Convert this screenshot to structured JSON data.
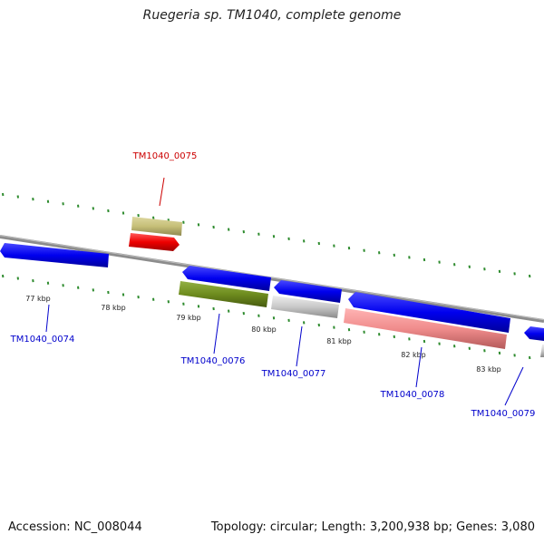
{
  "title": "Ruegeria sp. TM1040, complete genome",
  "footer": {
    "accession": "Accession: NC_008044",
    "summary": "Topology: circular; Length: 3,200,938 bp; Genes: 3,080"
  },
  "scale": {
    "ticks": [
      "77 kbp",
      "78 kbp",
      "79 kbp",
      "80 kbp",
      "81 kbp",
      "82 kbp",
      "83 kbp"
    ]
  },
  "genes": [
    {
      "label": "TM1040_0074",
      "color": "#0000ee"
    },
    {
      "label": "TM1040_0075",
      "color": "#cc0000"
    },
    {
      "label": "TM1040_0076",
      "color": "#0000ee"
    },
    {
      "label": "TM1040_0077",
      "color": "#0000ee"
    },
    {
      "label": "TM1040_0078",
      "color": "#0000ee"
    },
    {
      "label": "TM1040_0079",
      "color": "#0000ee"
    }
  ],
  "colors": {
    "backbone": "#8c8c8c",
    "tick_green": "#2e8b2e",
    "cds_blue": "#0000ee",
    "cds_red": "#ee0000",
    "cds_olive": "#c6bf78",
    "cds_darkolive": "#6e8c1e",
    "cds_gray": "#c8c8c8",
    "cds_pink": "#f08c8c"
  }
}
